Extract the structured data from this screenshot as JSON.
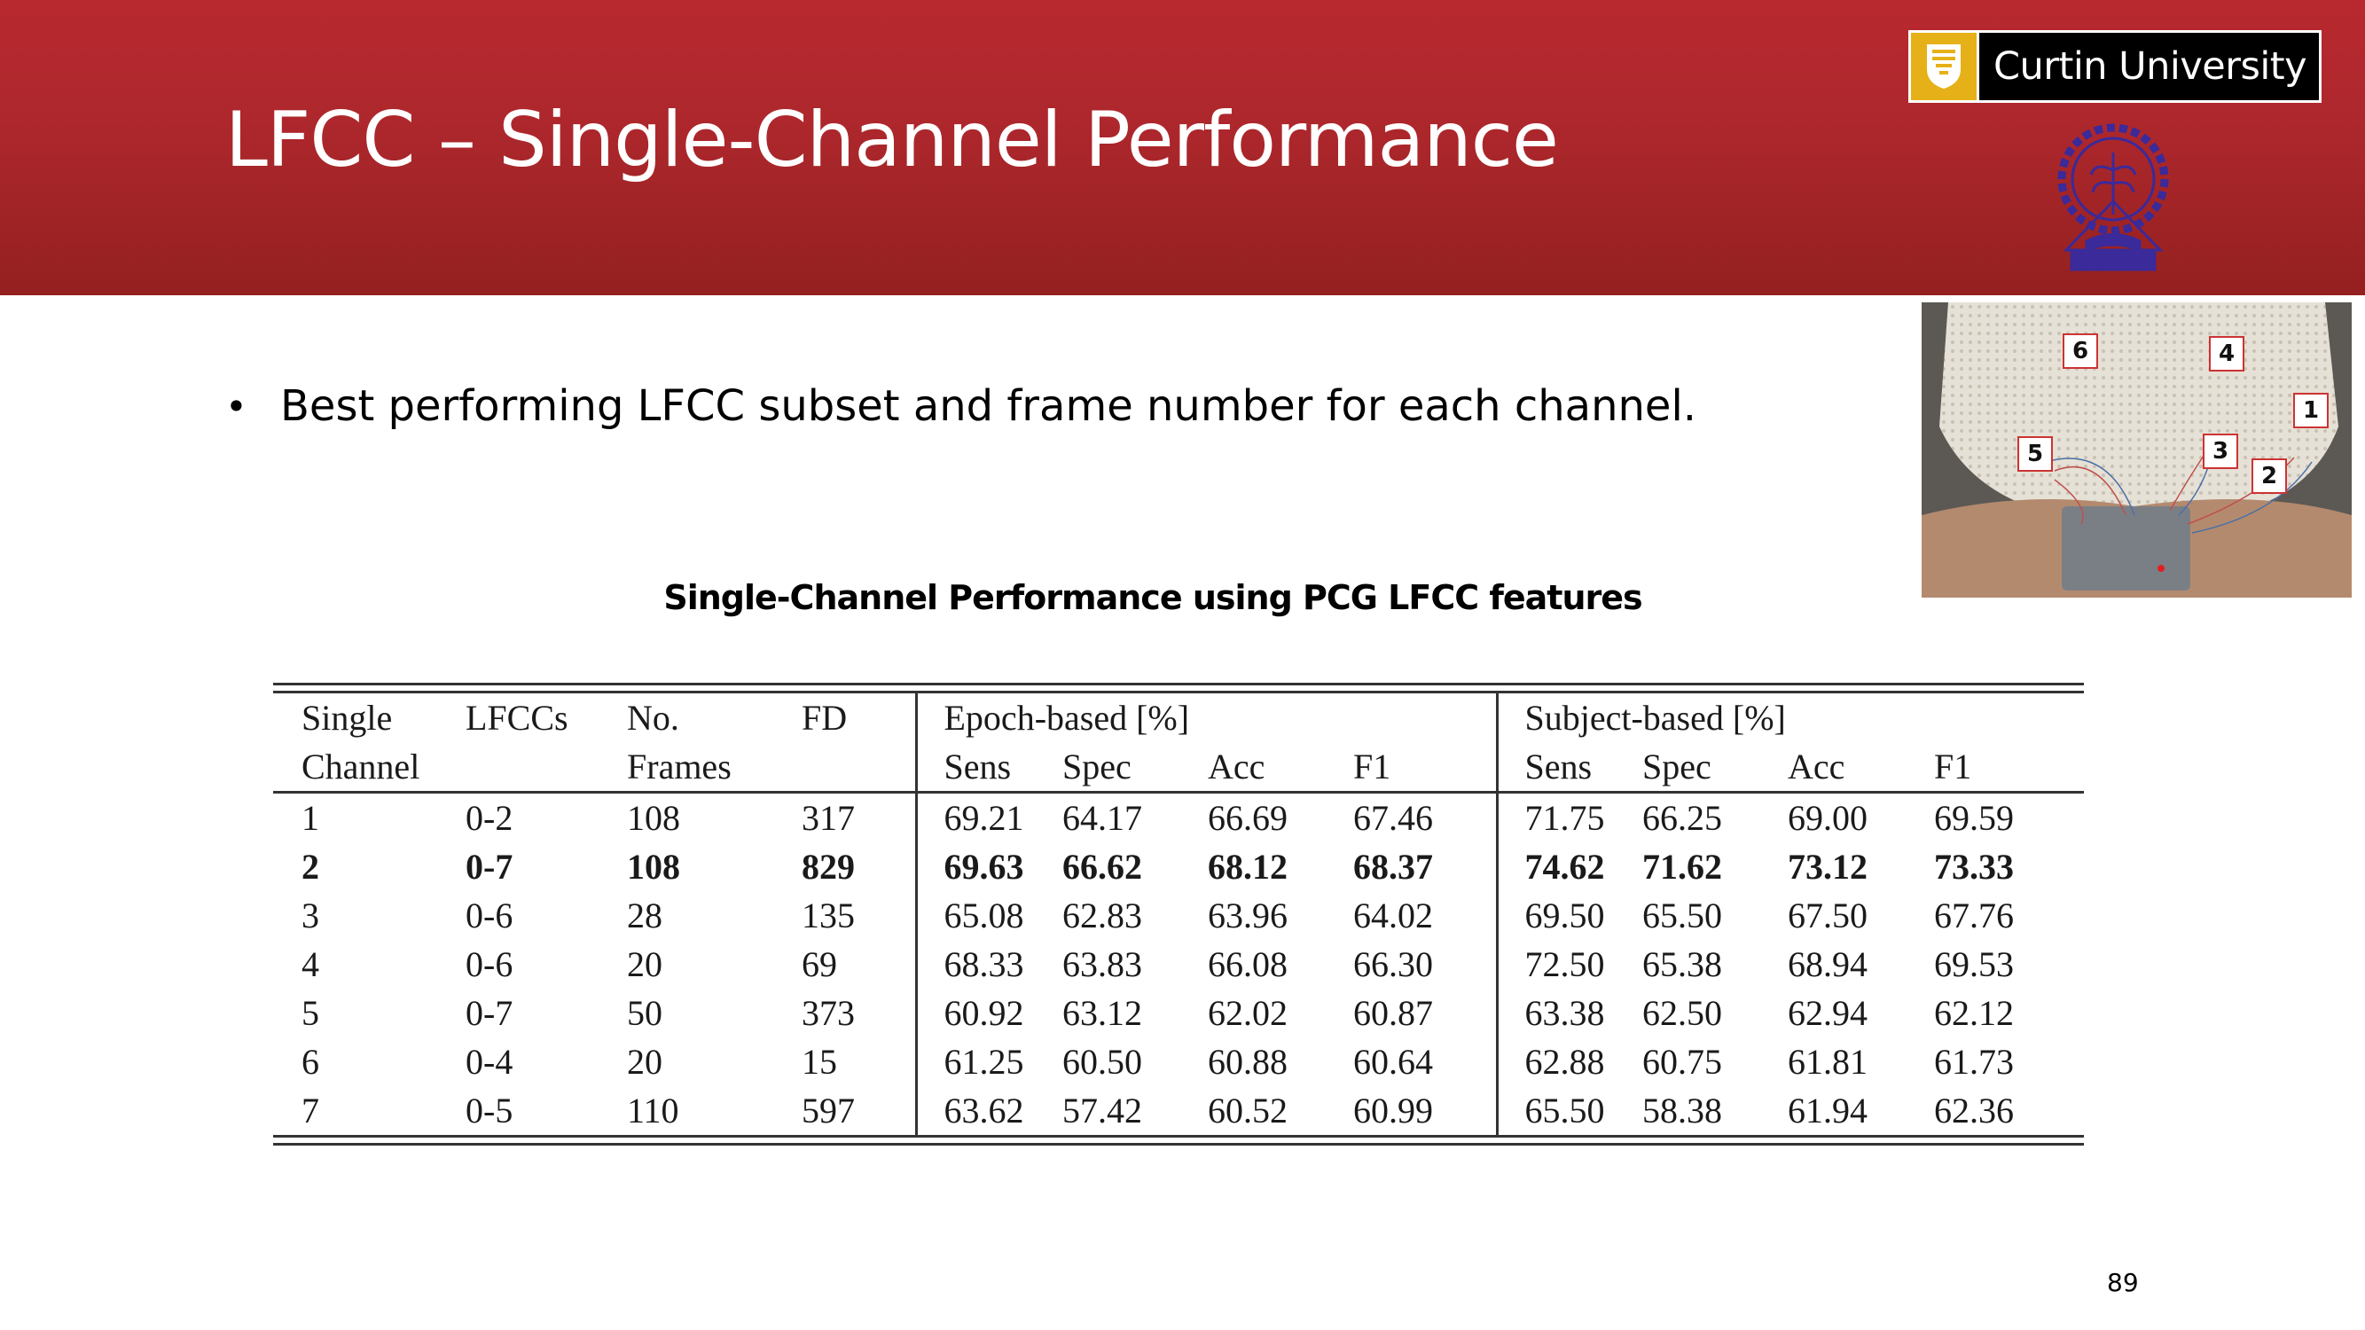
{
  "slide": {
    "title": "LFCC – Single-Channel Performance",
    "bullet": "Best performing LFCC subset and frame number for each channel.",
    "page_number": "89"
  },
  "logos": {
    "curtin_text": "Curtin University"
  },
  "photo": {
    "channel_labels": [
      "6",
      "4",
      "1",
      "5",
      "3",
      "2"
    ]
  },
  "table": {
    "caption": "Single-Channel Performance using PCG LFCC features",
    "header_row1": {
      "single": "Single",
      "lfccs": "LFCCs",
      "no": "No.",
      "fd": "FD",
      "epoch": "Epoch-based [%]",
      "subject": "Subject-based [%]"
    },
    "header_row2": {
      "channel": "Channel",
      "frames": "Frames",
      "epoch_cols": [
        "Sens",
        "Spec",
        "Acc",
        "F1"
      ],
      "subject_cols": [
        "Sens",
        "Spec",
        "Acc",
        "F1"
      ]
    },
    "rows": [
      [
        "1",
        "0-2",
        "108",
        "317",
        "69.21",
        "64.17",
        "66.69",
        "67.46",
        "71.75",
        "66.25",
        "69.00",
        "69.59"
      ],
      [
        "2",
        "0-7",
        "108",
        "829",
        "69.63",
        "66.62",
        "68.12",
        "68.37",
        "74.62",
        "71.62",
        "73.12",
        "73.33"
      ],
      [
        "3",
        "0-6",
        "28",
        "135",
        "65.08",
        "62.83",
        "63.96",
        "64.02",
        "69.50",
        "65.50",
        "67.50",
        "67.76"
      ],
      [
        "4",
        "0-6",
        "20",
        "69",
        "68.33",
        "63.83",
        "66.08",
        "66.30",
        "72.50",
        "65.38",
        "68.94",
        "69.53"
      ],
      [
        "5",
        "0-7",
        "50",
        "373",
        "60.92",
        "63.12",
        "62.02",
        "60.87",
        "63.38",
        "62.50",
        "62.94",
        "62.12"
      ],
      [
        "6",
        "0-4",
        "20",
        "15",
        "61.25",
        "60.50",
        "60.88",
        "60.64",
        "62.88",
        "60.75",
        "61.81",
        "61.73"
      ],
      [
        "7",
        "0-5",
        "110",
        "597",
        "63.62",
        "57.42",
        "60.52",
        "60.99",
        "65.50",
        "58.38",
        "61.94",
        "62.36"
      ]
    ],
    "bold_row_index": 1
  }
}
